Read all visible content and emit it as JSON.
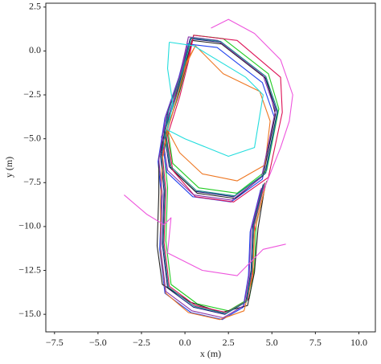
{
  "chart_data": {
    "type": "line",
    "xlabel": "x (m)",
    "ylabel": "y (m)",
    "xlim": [
      -8.0,
      10.95
    ],
    "ylim": [
      -16.0,
      2.72
    ],
    "xticks": [
      {
        "value": -7.5,
        "label": "−7.5"
      },
      {
        "value": -5,
        "label": "−5.0"
      },
      {
        "value": -2.5,
        "label": "−2.5"
      },
      {
        "value": 0,
        "label": "0.0"
      },
      2.5,
      {
        "value": 5,
        "label": "5.0"
      },
      7.5,
      {
        "value": 10,
        "label": "10.0"
      }
    ],
    "yticks": [
      2.5,
      {
        "value": 0,
        "label": "0.0"
      },
      {
        "value": -2.5,
        "label": "−2.5"
      },
      {
        "value": -5,
        "label": "−5.0"
      },
      {
        "value": -7.5,
        "label": "−7.5"
      },
      {
        "value": -10,
        "label": "−10.0"
      },
      {
        "value": -12.5,
        "label": "−12.5"
      },
      {
        "value": -15,
        "label": "−15.0"
      }
    ],
    "series": [
      {
        "color": "#1a1a7a",
        "x": [
          0.3,
          2.0,
          4.6,
          5.3,
          4.6,
          2.8,
          0.6,
          -0.9,
          -1.2,
          -0.5,
          0.0,
          0.3,
          -0.2,
          -1.0,
          -1.4,
          -1.2,
          -1.3,
          -1.0,
          0.5,
          2.3,
          3.5,
          3.8,
          3.9,
          4.5
        ],
        "y": [
          0.7,
          0.5,
          -1.5,
          -3.5,
          -7.0,
          -8.3,
          -8.0,
          -6.6,
          -4.6,
          -2.5,
          -0.6,
          0.7,
          -1.2,
          -3.5,
          -6.0,
          -8.0,
          -11.0,
          -13.5,
          -14.6,
          -15.0,
          -14.3,
          -12.5,
          -10.0,
          -7.6
        ]
      },
      {
        "color": "#22cc22",
        "x": [
          0.5,
          2.2,
          4.8,
          5.4,
          4.7,
          3.0,
          0.8,
          -0.7,
          -1.0,
          -0.3,
          0.2,
          0.5,
          0.0,
          -0.8,
          -1.2,
          -1.0,
          -1.1,
          -0.8,
          0.7,
          2.5,
          3.7,
          4.0,
          4.1,
          4.7
        ],
        "y": [
          0.9,
          0.7,
          -1.3,
          -3.3,
          -6.8,
          -8.1,
          -7.8,
          -6.4,
          -4.4,
          -2.3,
          -0.4,
          0.9,
          -1.0,
          -3.3,
          -5.8,
          -7.8,
          -10.8,
          -13.3,
          -14.4,
          -14.8,
          -14.1,
          -12.3,
          -9.8,
          -7.4
        ]
      },
      {
        "color": "#2244ee",
        "x": [
          0.15,
          1.85,
          4.45,
          5.15,
          4.45,
          2.65,
          0.45,
          -1.05,
          -1.35,
          -0.65,
          -0.15,
          0.15,
          -0.35,
          -1.15,
          -1.55,
          -1.35,
          -1.45,
          -1.15,
          0.35,
          2.15,
          3.35,
          3.65,
          3.75,
          4.35
        ],
        "y": [
          0.4,
          0.2,
          -1.8,
          -3.8,
          -7.3,
          -8.6,
          -8.3,
          -6.9,
          -4.9,
          -2.8,
          -0.9,
          0.4,
          -1.5,
          -3.8,
          -6.3,
          -8.3,
          -11.3,
          -13.8,
          -14.9,
          -15.3,
          -14.6,
          -12.8,
          -10.3,
          -7.9
        ]
      },
      {
        "color": "#222222",
        "x": [
          0.4,
          2.1,
          4.7,
          5.2,
          4.5,
          2.9,
          0.7,
          -0.8,
          -1.1,
          -0.4,
          0.1,
          0.4,
          -0.1,
          -0.9,
          -1.5,
          -1.5,
          -1.6,
          -1.3,
          0.3,
          2.1,
          3.6,
          4.0,
          4.2,
          4.6
        ],
        "y": [
          0.6,
          0.4,
          -1.6,
          -3.6,
          -7.1,
          -8.4,
          -8.1,
          -6.7,
          -4.7,
          -2.6,
          -0.7,
          0.6,
          -1.3,
          -3.6,
          -6.1,
          -8.1,
          -11.1,
          -13.3,
          -14.3,
          -14.9,
          -14.5,
          -12.6,
          -10.1,
          -7.7
        ]
      },
      {
        "color": "#dd1155",
        "x": [
          0.5,
          3.0,
          5.5,
          5.6,
          4.8,
          2.8,
          0.6,
          -0.7,
          -1.0,
          -0.3,
          0.2,
          0.5,
          0.0,
          -0.8,
          -1.3,
          -1.1,
          -1.2,
          -0.9,
          0.6,
          2.4,
          3.6,
          3.9,
          4.0,
          4.6
        ],
        "y": [
          0.9,
          0.6,
          -1.5,
          -3.5,
          -7.2,
          -8.6,
          -8.3,
          -6.8,
          -4.8,
          -2.6,
          -0.6,
          0.9,
          -1.1,
          -3.4,
          -5.9,
          -7.9,
          -10.9,
          -13.4,
          -14.5,
          -14.9,
          -14.2,
          -12.4,
          -9.9,
          -7.5
        ]
      },
      {
        "color": "#ee7722",
        "x": [
          0.6,
          2.2,
          4.3,
          4.9,
          4.6,
          3.0,
          1.0,
          -0.3,
          -1.0,
          -0.4,
          0.1,
          0.6,
          -0.3,
          -0.9,
          -1.3,
          -1.4,
          -1.4,
          -1.1,
          0.2,
          2.0,
          3.4,
          3.9,
          4.0,
          4.6
        ],
        "y": [
          0.3,
          -1.3,
          -2.3,
          -4.0,
          -6.5,
          -7.4,
          -7.0,
          -5.8,
          -4.5,
          -2.5,
          -0.6,
          0.3,
          -1.5,
          -3.8,
          -6.2,
          -8.5,
          -11.5,
          -13.8,
          -14.9,
          -15.3,
          -14.8,
          -12.8,
          -10.3,
          -7.8
        ]
      },
      {
        "color": "#8833aa",
        "x": [
          0.2,
          1.9,
          4.5,
          5.2,
          4.4,
          2.7,
          0.5,
          -1.0,
          -1.3,
          -0.6,
          -0.1,
          0.2,
          -0.3,
          -1.1,
          -1.5,
          -1.3,
          -1.4,
          -1.1,
          0.4,
          2.2,
          3.4,
          3.7,
          3.8,
          4.4
        ],
        "y": [
          0.8,
          0.6,
          -1.4,
          -3.4,
          -7.2,
          -8.5,
          -8.2,
          -6.8,
          -4.8,
          -2.7,
          -0.8,
          0.8,
          -1.4,
          -3.7,
          -6.2,
          -8.2,
          -11.2,
          -13.7,
          -14.8,
          -15.2,
          -14.5,
          -12.7,
          -10.2,
          -7.8
        ]
      },
      {
        "color": "#1a8a8a",
        "x": [
          0.35,
          2.05,
          4.65,
          5.35,
          4.65,
          2.85,
          0.65,
          -0.85,
          -1.15,
          -0.45,
          0.05,
          0.35,
          -0.15,
          -0.95,
          -1.35,
          -1.15,
          -1.25,
          -0.95,
          0.55,
          2.35,
          3.55,
          3.85,
          3.95,
          4.55
        ],
        "y": [
          0.75,
          0.55,
          -1.45,
          -3.45,
          -6.95,
          -8.25,
          -7.95,
          -6.55,
          -4.55,
          -2.45,
          -0.55,
          0.75,
          -1.15,
          -3.45,
          -5.95,
          -7.95,
          -10.95,
          -13.45,
          -14.55,
          -14.95,
          -14.25,
          -12.45,
          -9.95,
          -7.55
        ]
      },
      {
        "color": "#22dddd",
        "x": [
          -0.9,
          0.5,
          3.5,
          4.5,
          4.0,
          2.5,
          0.0,
          -1.0,
          -0.7,
          -1.0,
          -0.9
        ],
        "y": [
          0.5,
          0.3,
          -1.5,
          -2.5,
          -5.5,
          -6.0,
          -5.0,
          -4.5,
          -3.0,
          -1.0,
          0.5
        ]
      },
      {
        "color": "#ee55dd",
        "x": [
          -3.5,
          -2.2,
          -1.2,
          -0.8,
          -1.0,
          1.0,
          3.0,
          4.5,
          5.8
        ],
        "y": [
          -8.2,
          -9.3,
          -9.9,
          -9.5,
          -11.5,
          -12.5,
          -12.8,
          -11.3,
          -11.0
        ]
      },
      {
        "color": "#ee55dd",
        "x": [
          1.5,
          2.5,
          4.0,
          5.5,
          6.2,
          6.0,
          5.5,
          4.5
        ],
        "y": [
          1.3,
          1.8,
          1.0,
          -0.5,
          -2.5,
          -4.0,
          -5.5,
          -8.0
        ]
      }
    ]
  }
}
